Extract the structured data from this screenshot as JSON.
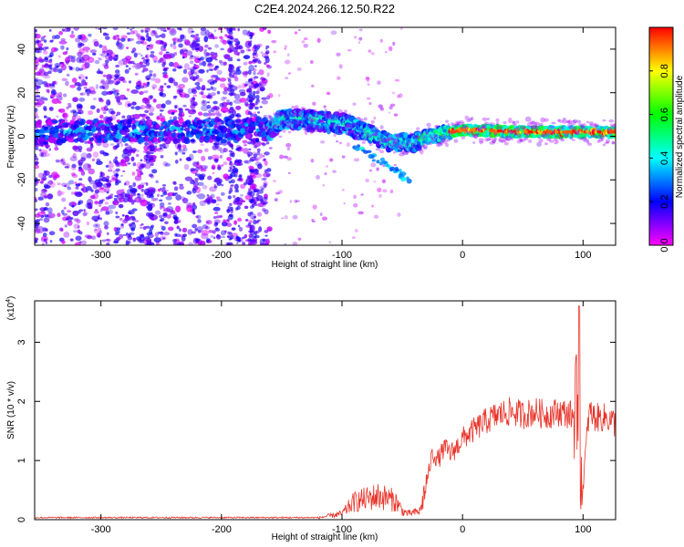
{
  "chart_data": [
    {
      "type": "heatmap",
      "title": "C2E4.2024.266.12.50.R22",
      "xlabel": "Height of straight line (km)",
      "ylabel": "Frequency (Hz)",
      "xlim": [
        -355,
        127
      ],
      "ylim": [
        -50,
        50
      ],
      "x_ticks": [
        -300,
        -200,
        -100,
        0,
        100
      ],
      "y_ticks": [
        -40,
        -20,
        0,
        20,
        40
      ],
      "colorbar": {
        "label": "Normalized spectral amplitude",
        "range": [
          0,
          1
        ],
        "ticks": [
          "0.0",
          "0.2",
          "0.4",
          "0.6",
          "0.8"
        ],
        "colors": [
          "#ff00ff",
          "#0000ff",
          "#00ffff",
          "#00ff00",
          "#ffff00",
          "#ff0000"
        ]
      },
      "ridge": {
        "description_points": [
          {
            "x": -355,
            "y": 2
          },
          {
            "x": -160,
            "y": 3
          },
          {
            "x": -150,
            "y": 8
          },
          {
            "x": -120,
            "y": 7
          },
          {
            "x": -100,
            "y": 6
          },
          {
            "x": -80,
            "y": 2
          },
          {
            "x": -60,
            "y": -3
          },
          {
            "x": -40,
            "y": -3
          },
          {
            "x": -30,
            "y": 0
          },
          {
            "x": -10,
            "y": 2
          },
          {
            "x": 0,
            "y": 3
          },
          {
            "x": 50,
            "y": 2
          },
          {
            "x": 100,
            "y": 2
          },
          {
            "x": 127,
            "y": 2
          }
        ],
        "peak_amplitude_region": [
          -10,
          127
        ]
      },
      "tail": [
        {
          "x": -90,
          "y": -5
        },
        {
          "x": -60,
          "y": -14
        },
        {
          "x": -45,
          "y": -20
        }
      ]
    },
    {
      "type": "line",
      "title": "",
      "xlabel": "Height of straight line (km)",
      "ylabel": "SNR (10 * v/v)",
      "y_multiplier": "(x10^4)",
      "xlim": [
        -355,
        127
      ],
      "ylim": [
        0,
        3.7
      ],
      "x_ticks": [
        -300,
        -200,
        -100,
        0,
        100
      ],
      "y_ticks": [
        0,
        1,
        2,
        3
      ],
      "series": [
        {
          "color": "#e8342a",
          "x": [
            -355,
            -300,
            -200,
            -120,
            -100,
            -90,
            -80,
            -70,
            -60,
            -55,
            -50,
            -45,
            -40,
            -35,
            -30,
            -25,
            -20,
            -15,
            -10,
            -5,
            0,
            10,
            20,
            30,
            40,
            50,
            60,
            70,
            80,
            90,
            95,
            97,
            99,
            105,
            110,
            120,
            127
          ],
          "y": [
            0.03,
            0.03,
            0.03,
            0.03,
            0.1,
            0.3,
            0.35,
            0.4,
            0.35,
            0.3,
            0.15,
            0.1,
            0.12,
            0.15,
            0.6,
            1.1,
            1.0,
            1.2,
            1.1,
            1.2,
            1.35,
            1.5,
            1.65,
            1.75,
            1.8,
            1.75,
            1.8,
            1.75,
            1.8,
            1.75,
            1.5,
            3.6,
            0.3,
            1.8,
            1.7,
            1.7,
            1.6
          ]
        }
      ]
    }
  ]
}
